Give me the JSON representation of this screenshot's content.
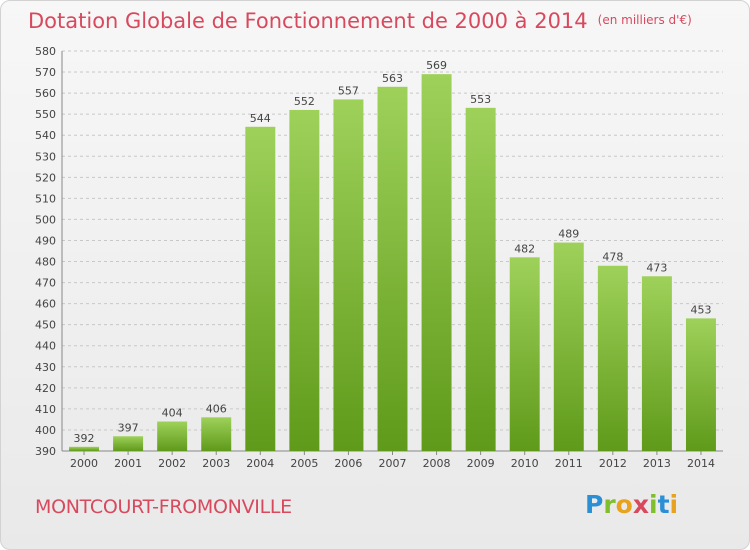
{
  "title": "Dotation Globale de Fonctionnement de 2000 à 2014",
  "subtitle": "(en milliers d'€)",
  "city": "MONTCOURT-FROMONVILLE",
  "logo": {
    "letters": [
      "P",
      "r",
      "o",
      "x",
      "i",
      "t",
      "i"
    ],
    "colors": [
      "#2b8fd6",
      "#7fbf2b",
      "#e8a21d",
      "#d8495e",
      "#7fbf2b",
      "#2b8fd6",
      "#e8a21d"
    ]
  },
  "colors": {
    "title": "#d8495e",
    "bar_light": "#9ed15a",
    "bar_dark": "#5f9a1a",
    "grid": "#c8c8c8"
  },
  "chart_data": {
    "type": "bar",
    "title": "Dotation Globale de Fonctionnement de 2000 à 2014",
    "unit": "(en milliers d'€)",
    "categories": [
      "2000",
      "2001",
      "2002",
      "2003",
      "2004",
      "2005",
      "2006",
      "2007",
      "2008",
      "2009",
      "2010",
      "2011",
      "2012",
      "2013",
      "2014"
    ],
    "values": [
      392,
      397,
      404,
      406,
      544,
      552,
      557,
      563,
      569,
      553,
      482,
      489,
      478,
      473,
      453
    ],
    "ylim": [
      390,
      580
    ],
    "ytick_step": 10,
    "grid": true
  }
}
